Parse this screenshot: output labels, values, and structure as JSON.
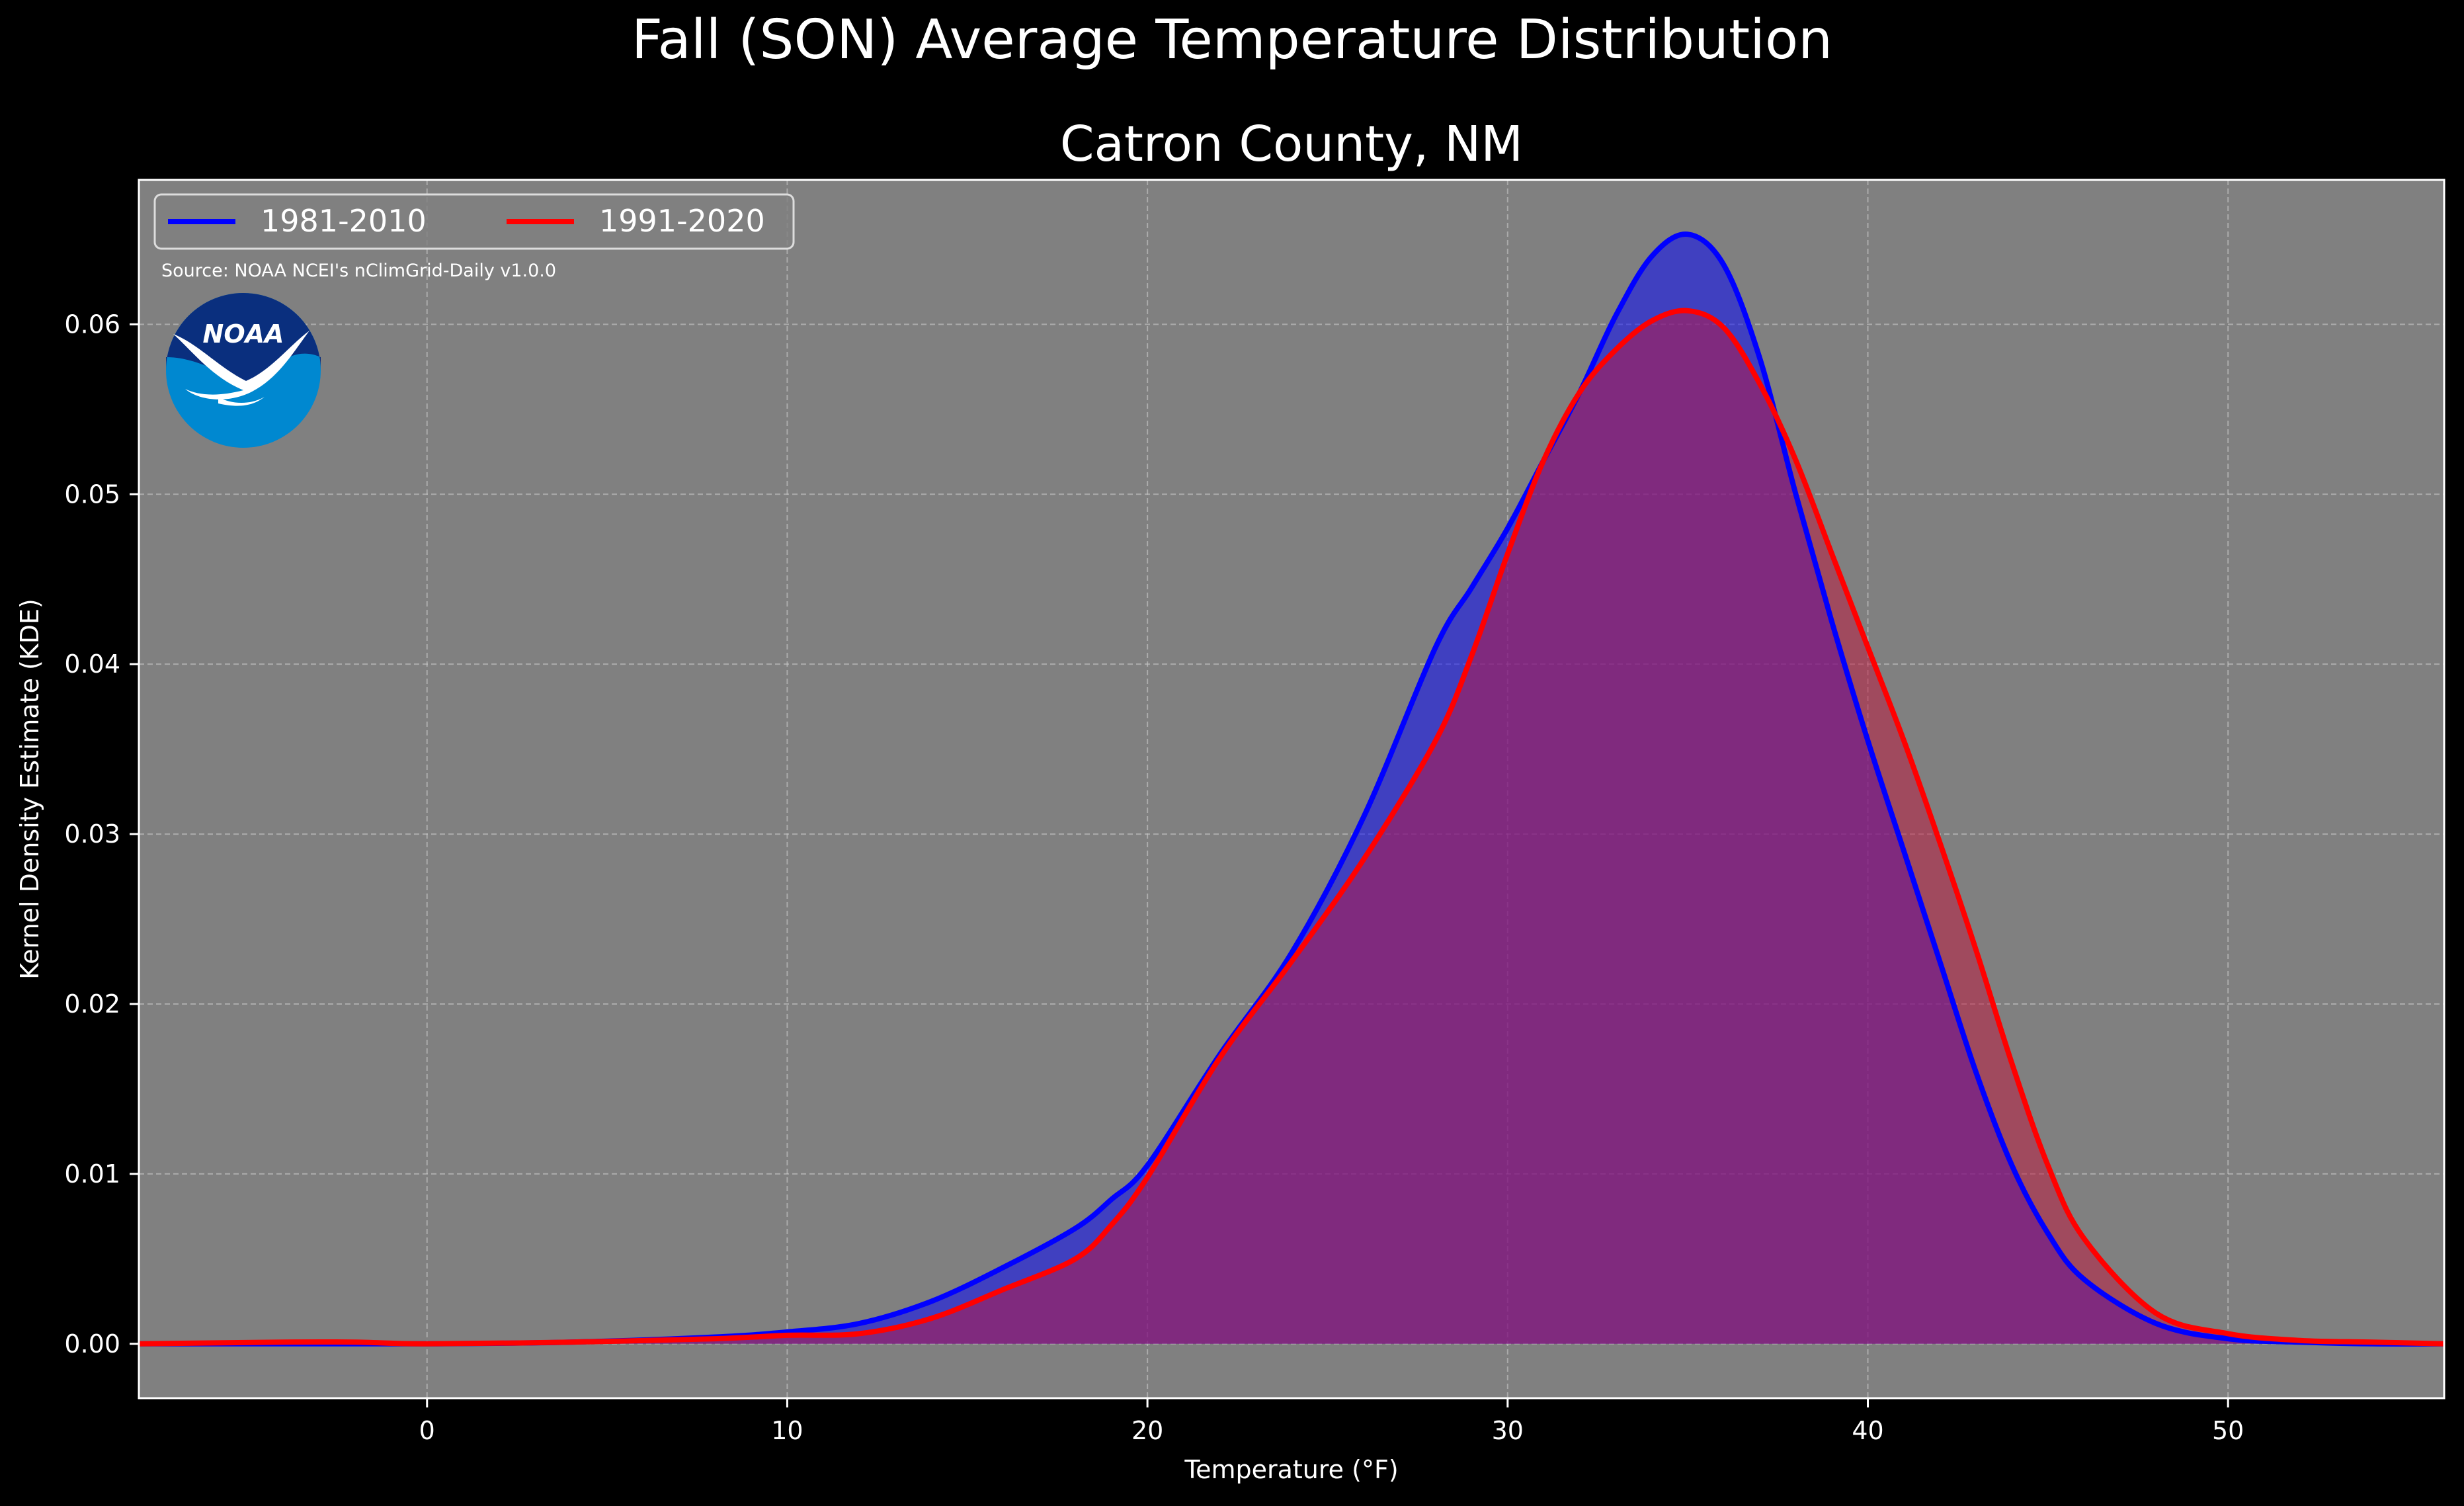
{
  "chart_data": {
    "type": "area",
    "title": "Fall (SON) Average Temperature Distribution",
    "subtitle": "Catron County, NM",
    "xlabel": "Temperature ($^\\circ$F)",
    "xlabel_display": "Temperature (°F)",
    "ylabel": "Kernel Density Estimate (KDE)",
    "xlim": [
      -8,
      56
    ],
    "ylim": [
      -0.0032,
      0.0685
    ],
    "xticks": [
      0,
      10,
      20,
      30,
      40,
      50
    ],
    "xtick_labels": [
      "0",
      "10",
      "20",
      "30",
      "40",
      "50"
    ],
    "yticks": [
      0.0,
      0.01,
      0.02,
      0.03,
      0.04,
      0.05,
      0.06
    ],
    "ytick_labels": [
      "0.00",
      "0.01",
      "0.02",
      "0.03",
      "0.04",
      "0.05",
      "0.06"
    ],
    "grid": true,
    "legend_position": "top-left",
    "source_note": "Source: NOAA NCEI's nClimGrid-Daily v1.0.0",
    "logo_text": "NOAA",
    "plot_background": "#808080",
    "figure_background": "#000000",
    "series": [
      {
        "name": "1981-2010",
        "color": "#0000ff",
        "fill": "#0000ff",
        "x": [
          -8,
          -4,
          0,
          4,
          8,
          10,
          12,
          14,
          16,
          18,
          19,
          20,
          22,
          24,
          26,
          28,
          29,
          30,
          31,
          32,
          33,
          34,
          35,
          36,
          37,
          38,
          39,
          40,
          41,
          42,
          43,
          44,
          45,
          46,
          48,
          50,
          52,
          54,
          56
        ],
        "values": [
          0.0,
          0.0,
          0.0,
          0.0001,
          0.0004,
          0.0007,
          0.0012,
          0.0025,
          0.0045,
          0.0068,
          0.0085,
          0.0105,
          0.017,
          0.023,
          0.031,
          0.041,
          0.0445,
          0.048,
          0.052,
          0.056,
          0.0605,
          0.064,
          0.0653,
          0.0635,
          0.058,
          0.05,
          0.0425,
          0.0355,
          0.029,
          0.0225,
          0.016,
          0.0105,
          0.0065,
          0.0038,
          0.0012,
          0.0003,
          0.0001,
          0.0,
          0.0
        ]
      },
      {
        "name": "1991-2020",
        "color": "#ff0000",
        "fill": "#c0143c",
        "x": [
          -8,
          -4,
          -2,
          0,
          4,
          8,
          10,
          12,
          14,
          16,
          18,
          19,
          20,
          22,
          24,
          26,
          28,
          29,
          30,
          31,
          32,
          33,
          34,
          35,
          36,
          37,
          38,
          39,
          40,
          41,
          42,
          43,
          44,
          45,
          46,
          48,
          50,
          52,
          54,
          56
        ],
        "values": [
          0.0,
          0.0001,
          0.0001,
          0.0,
          0.0001,
          0.0003,
          0.0005,
          0.0006,
          0.0015,
          0.0032,
          0.005,
          0.007,
          0.0098,
          0.0168,
          0.0225,
          0.0285,
          0.0355,
          0.0405,
          0.0465,
          0.052,
          0.056,
          0.0585,
          0.0602,
          0.0608,
          0.0598,
          0.0565,
          0.052,
          0.0465,
          0.041,
          0.0355,
          0.0295,
          0.0232,
          0.0165,
          0.0105,
          0.0062,
          0.0018,
          0.0006,
          0.0002,
          0.0001,
          0.0
        ]
      }
    ]
  }
}
